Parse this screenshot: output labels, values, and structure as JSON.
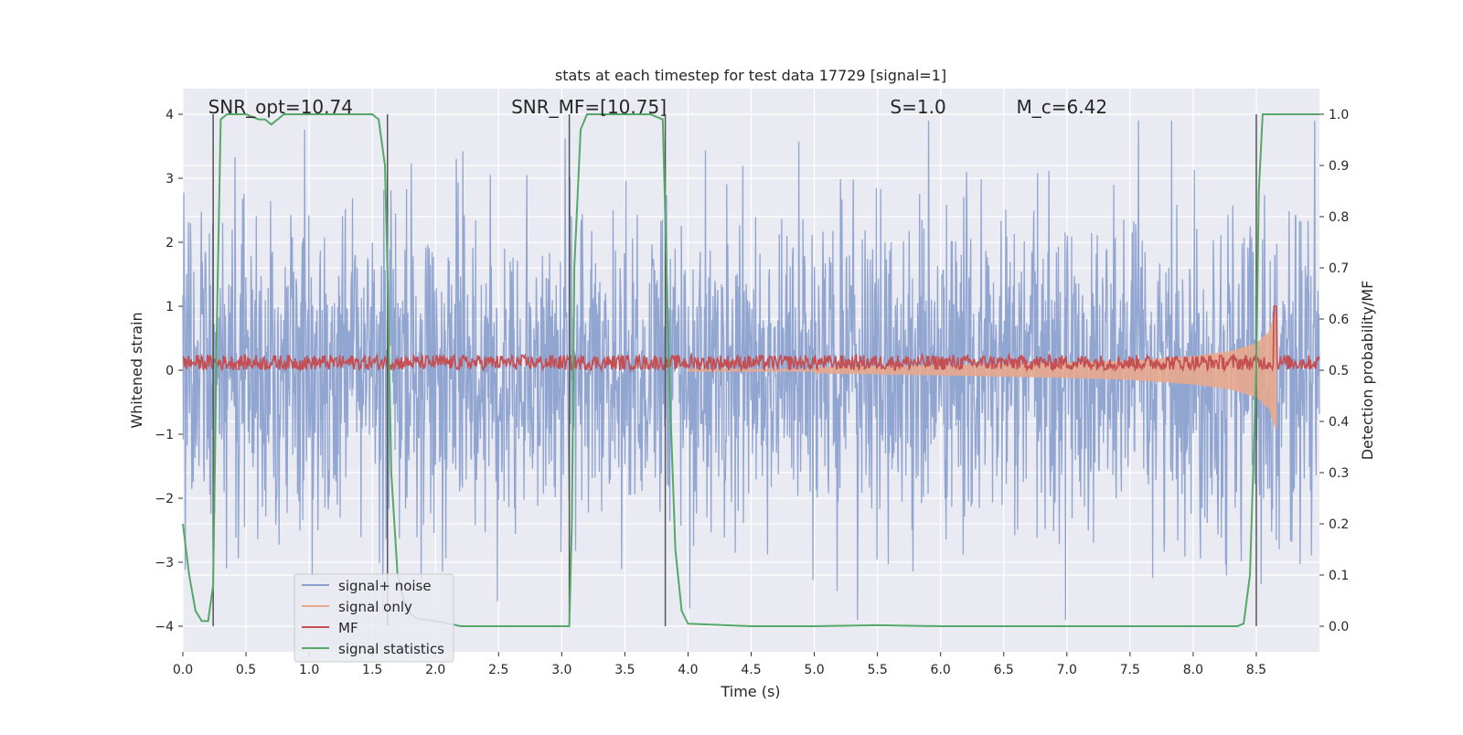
{
  "chart_data": {
    "type": "line",
    "title": "stats at each timestep for test data 17729 [signal=1]",
    "xlabel": "Time (s)",
    "ylabel_left": "Whitened strain",
    "ylabel_right": "Detection probability/MF",
    "xlim": [
      0.0,
      9.0
    ],
    "ylim_left": [
      -4.4,
      4.4
    ],
    "ylim_right": [
      -0.05,
      1.05
    ],
    "x_ticks": [
      0.0,
      0.5,
      1.0,
      1.5,
      2.0,
      2.5,
      3.0,
      3.5,
      4.0,
      4.5,
      5.0,
      5.5,
      6.0,
      6.5,
      7.0,
      7.5,
      8.0,
      8.5
    ],
    "x_tick_labels": [
      "0.0",
      "0.5",
      "1.0",
      "1.5",
      "2.0",
      "2.5",
      "3.0",
      "3.5",
      "4.0",
      "4.5",
      "5.0",
      "5.5",
      "6.0",
      "6.5",
      "7.0",
      "7.5",
      "8.0",
      "8.5"
    ],
    "y_left_ticks": [
      -4,
      -3,
      -2,
      -1,
      0,
      1,
      2,
      3,
      4
    ],
    "y_left_tick_labels": [
      "−4",
      "−3",
      "−2",
      "−1",
      "0",
      "1",
      "2",
      "3",
      "4"
    ],
    "y_right_ticks": [
      0.0,
      0.1,
      0.2,
      0.3,
      0.4,
      0.5,
      0.6,
      0.7,
      0.8,
      0.9,
      1.0
    ],
    "y_right_tick_labels": [
      "0.0",
      "0.1",
      "0.2",
      "0.3",
      "0.4",
      "0.5",
      "0.6",
      "0.7",
      "0.8",
      "0.9",
      "1.0"
    ],
    "grid": true,
    "legend": {
      "placement": "lower-left",
      "entries": [
        {
          "label": "signal+ noise",
          "color": "#8ca1cf"
        },
        {
          "label": "signal only",
          "color": "#e8a98d"
        },
        {
          "label": "MF",
          "color": "#c44e52"
        },
        {
          "label": "signal statistics",
          "color": "#55a868"
        }
      ]
    },
    "annotations": [
      {
        "id": "snr-opt",
        "text": "SNR_opt=10.74",
        "x": 0.2
      },
      {
        "id": "snr-mf",
        "text": "SNR_MF=[10.75]",
        "x": 2.6
      },
      {
        "id": "s-value",
        "text": "S=1.0",
        "x": 5.6
      },
      {
        "id": "mc-value",
        "text": "M_c=6.42",
        "x": 6.6
      }
    ],
    "vertical_lines_x": [
      0.24,
      1.62,
      3.06,
      3.82,
      8.5
    ],
    "series": [
      {
        "name": "signal+ noise",
        "axis": "left",
        "color": "#8ca1cf",
        "description_x_range": [
          0.0,
          9.0
        ],
        "typical_amplitude": 2.0
      },
      {
        "name": "signal only",
        "axis": "left",
        "color": "#e8a98d",
        "envelope": {
          "x": [
            5.0,
            6.0,
            7.0,
            7.5,
            8.0,
            8.3,
            8.5,
            8.6,
            8.65
          ],
          "amp": [
            0.05,
            0.08,
            0.12,
            0.15,
            0.22,
            0.3,
            0.42,
            0.6,
            0.9
          ]
        },
        "chirp_end": 8.66
      },
      {
        "name": "MF",
        "axis": "right",
        "color": "#c44e52",
        "baseline": 0.515,
        "jitter": 0.015,
        "peak": {
          "x": 8.65,
          "value": 0.625
        }
      },
      {
        "name": "signal statistics",
        "axis": "right",
        "color": "#55a868",
        "x": [
          0.0,
          0.05,
          0.1,
          0.15,
          0.2,
          0.24,
          0.27,
          0.3,
          0.35,
          0.4,
          0.5,
          0.6,
          0.65,
          0.7,
          0.75,
          0.8,
          0.9,
          1.0,
          1.2,
          1.4,
          1.5,
          1.55,
          1.6,
          1.62,
          1.65,
          1.7,
          1.75,
          1.8,
          1.85,
          2.0,
          2.2,
          2.5,
          3.0,
          3.06,
          3.08,
          3.1,
          3.15,
          3.2,
          3.3,
          3.5,
          3.7,
          3.8,
          3.82,
          3.85,
          3.9,
          3.95,
          4.0,
          4.5,
          5.0,
          5.5,
          6.0,
          7.0,
          8.0,
          8.35,
          8.4,
          8.45,
          8.5,
          8.52,
          8.55,
          8.6,
          8.8,
          9.0
        ],
        "y": [
          0.2,
          0.1,
          0.03,
          0.01,
          0.01,
          0.08,
          0.6,
          0.99,
          1.0,
          1.0,
          1.0,
          0.99,
          0.99,
          0.98,
          0.99,
          1.0,
          1.0,
          1.0,
          1.0,
          1.0,
          1.0,
          0.99,
          0.9,
          0.7,
          0.3,
          0.1,
          0.05,
          0.025,
          0.015,
          0.01,
          0.0,
          0.0,
          0.0,
          0.0,
          0.2,
          0.7,
          0.97,
          1.0,
          1.0,
          1.0,
          1.0,
          0.99,
          0.8,
          0.5,
          0.15,
          0.03,
          0.005,
          0.0,
          0.0,
          0.002,
          0.0,
          0.0,
          0.0,
          0.0,
          0.005,
          0.1,
          0.5,
          0.85,
          1.0,
          1.0,
          1.0,
          1.0
        ]
      }
    ]
  }
}
